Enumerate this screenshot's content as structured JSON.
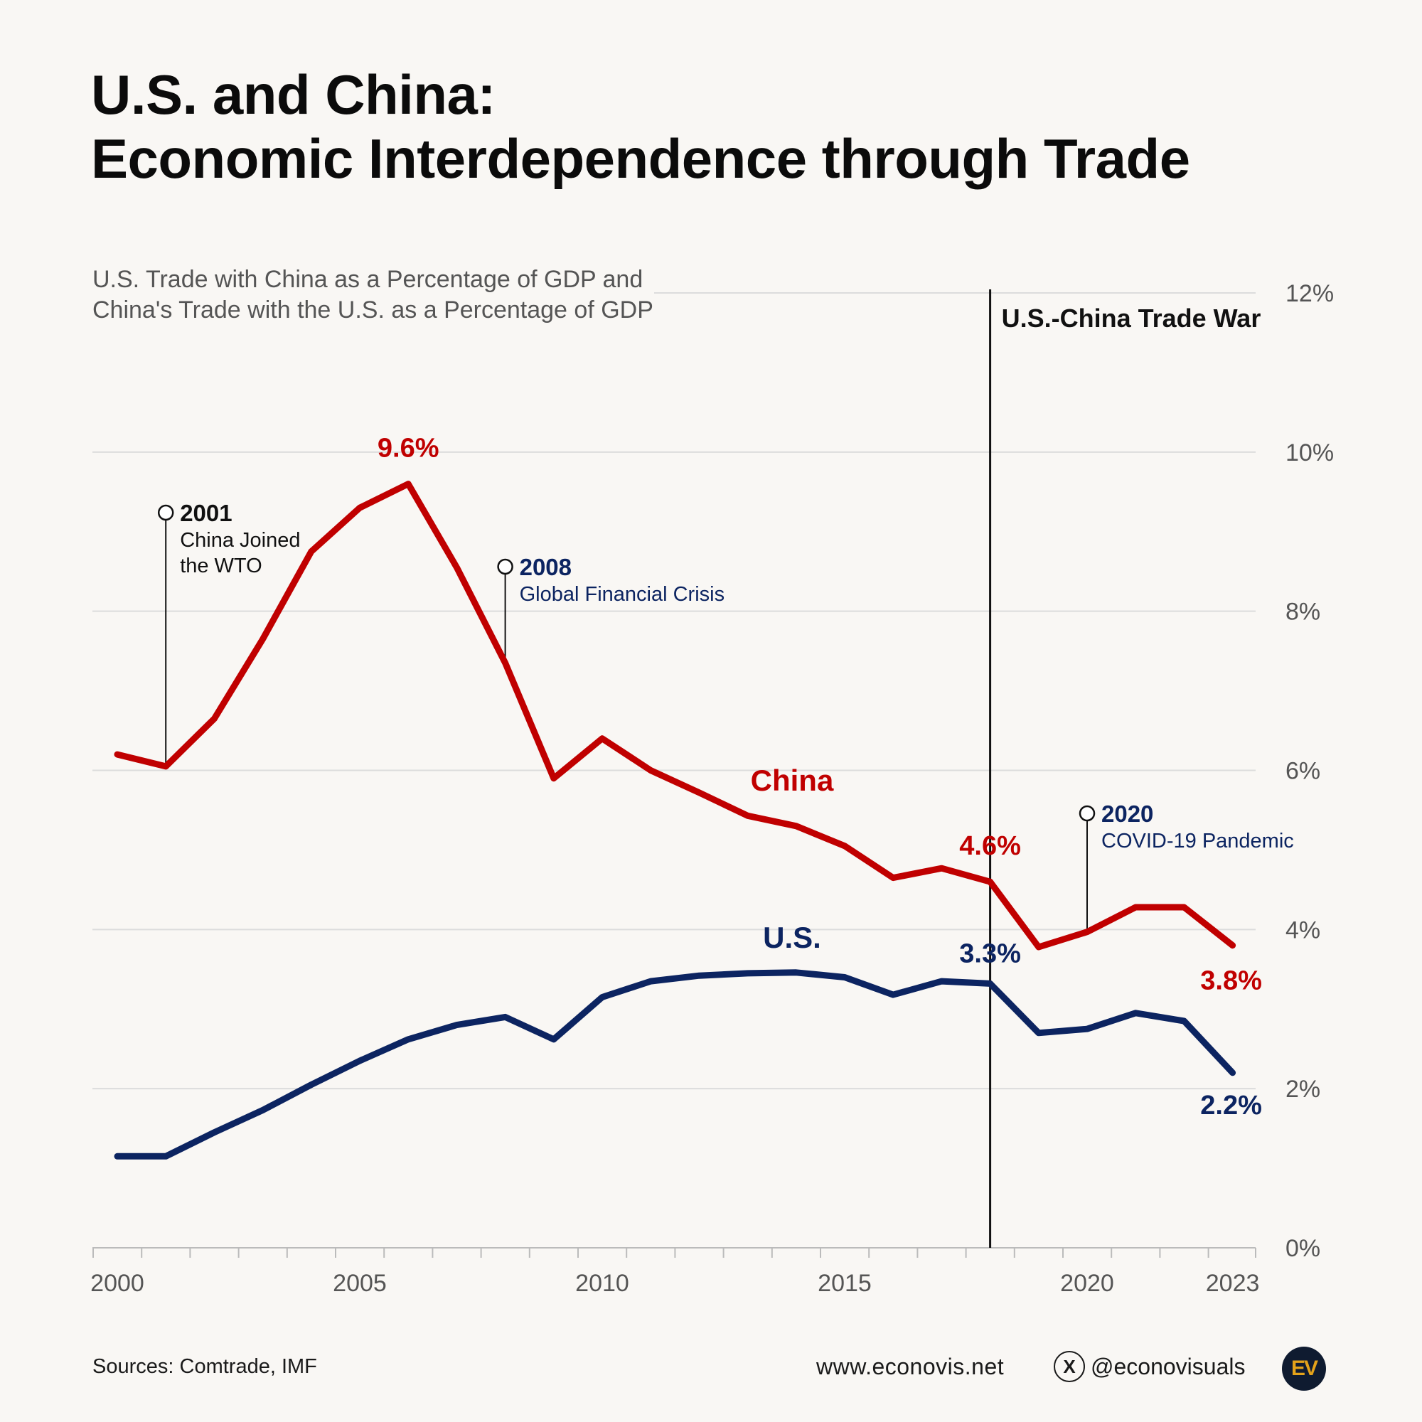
{
  "title": {
    "line1": "U.S. and China:",
    "line2": "Economic Interdependence through Trade"
  },
  "subtitle": {
    "line1": "U.S. Trade with China as a Percentage of GDP and",
    "line2": "China's Trade with the U.S. as a Percentage of GDP"
  },
  "chart_data": {
    "type": "line",
    "x": [
      2000,
      2001,
      2002,
      2003,
      2004,
      2005,
      2006,
      2007,
      2008,
      2009,
      2010,
      2011,
      2012,
      2013,
      2014,
      2015,
      2016,
      2017,
      2018,
      2019,
      2020,
      2021,
      2022,
      2023
    ],
    "series": [
      {
        "name": "China",
        "label": "China",
        "color": "#c00000",
        "values": [
          6.2,
          6.05,
          6.65,
          7.65,
          8.75,
          9.3,
          9.6,
          8.55,
          7.35,
          5.9,
          6.4,
          6.0,
          5.72,
          5.43,
          5.3,
          5.05,
          4.65,
          4.77,
          4.6,
          3.78,
          3.97,
          4.28,
          4.28,
          3.8
        ]
      },
      {
        "name": "U.S.",
        "label": "U.S.",
        "color": "#0c2461",
        "values": [
          1.15,
          1.15,
          1.45,
          1.73,
          2.05,
          2.35,
          2.62,
          2.8,
          2.9,
          2.62,
          3.15,
          3.35,
          3.42,
          3.45,
          3.46,
          3.4,
          3.18,
          3.35,
          3.32,
          2.7,
          2.75,
          2.95,
          2.85,
          2.2
        ]
      }
    ],
    "data_labels": [
      {
        "series": "China",
        "year": 2006,
        "text": "9.6%"
      },
      {
        "series": "China",
        "year": 2018,
        "text": "4.6%"
      },
      {
        "series": "China",
        "year": 2023,
        "text": "3.8%"
      },
      {
        "series": "U.S.",
        "year": 2018,
        "text": "3.3%"
      },
      {
        "series": "U.S.",
        "year": 2023,
        "text": "2.2%"
      }
    ],
    "annotations": [
      {
        "year": 2001,
        "value": 6.05,
        "event_year": "2001",
        "lines": [
          "China Joined",
          "the WTO"
        ],
        "color": "#111111"
      },
      {
        "year": 2008,
        "value": 7.35,
        "event_year": "2008",
        "lines": [
          "Global Financial Crisis"
        ],
        "color": "#0c2461"
      },
      {
        "year": 2020,
        "value": 3.97,
        "event_year": "2020",
        "lines": [
          "COVID-19 Pandemic"
        ],
        "color": "#0c2461"
      }
    ],
    "vertical_marker": {
      "year": 2018,
      "label": "U.S.-China Trade War"
    },
    "y_ticks": [
      {
        "value": 0,
        "label": "0%"
      },
      {
        "value": 2,
        "label": "2%"
      },
      {
        "value": 4,
        "label": "4%"
      },
      {
        "value": 6,
        "label": "6%"
      },
      {
        "value": 8,
        "label": "8%"
      },
      {
        "value": 10,
        "label": "10%"
      },
      {
        "value": 12,
        "label": "12%"
      }
    ],
    "x_tick_labels": [
      {
        "value": 2000,
        "label": "2000"
      },
      {
        "value": 2005,
        "label": "2005"
      },
      {
        "value": 2010,
        "label": "2010"
      },
      {
        "value": 2015,
        "label": "2015"
      },
      {
        "value": 2020,
        "label": "2020"
      },
      {
        "value": 2023,
        "label": "2023"
      }
    ],
    "xlim": [
      1999.5,
      2023.5
    ],
    "ylim": [
      0,
      12
    ],
    "grid": true,
    "y_axis_side": "right"
  },
  "footer": {
    "source": "Sources: Comtrade, IMF",
    "website": "www.econovis.net",
    "x_glyph": "X",
    "handle": "@econovisuals",
    "logo_text": "EV"
  }
}
